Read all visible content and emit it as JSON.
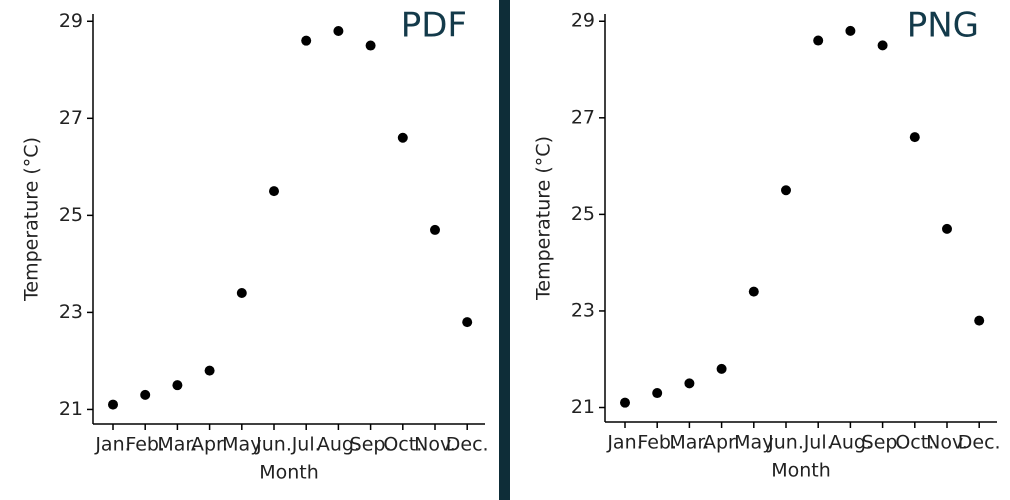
{
  "chart_data": [
    {
      "type": "scatter",
      "annotation": "PDF",
      "x_label": "Month",
      "y_label": "Temperature (°C)",
      "categories": [
        "Jan.",
        "Feb.",
        "Mar.",
        "Apr.",
        "May",
        "Jun.",
        "Jul.",
        "Aug.",
        "Sep.",
        "Oct.",
        "Nov.",
        "Dec."
      ],
      "values": [
        21.1,
        21.3,
        21.5,
        21.8,
        23.4,
        25.5,
        28.6,
        28.8,
        28.5,
        26.6,
        24.7,
        22.8
      ],
      "color": "#000000",
      "ylim": [
        20.7,
        29.15
      ],
      "yticks": [
        21,
        23,
        25,
        27,
        29
      ]
    },
    {
      "type": "scatter",
      "annotation": "PNG",
      "x_label": "Month",
      "y_label": "Temperature (°C)",
      "categories": [
        "Jan.",
        "Feb.",
        "Mar.",
        "Apr.",
        "May",
        "Jun.",
        "Jul.",
        "Aug.",
        "Sep.",
        "Oct.",
        "Nov.",
        "Dec."
      ],
      "values": [
        21.1,
        21.3,
        21.5,
        21.8,
        23.4,
        25.5,
        28.6,
        28.8,
        28.5,
        26.6,
        24.7,
        22.8
      ],
      "color": "#000000",
      "ylim": [
        20.7,
        29.15
      ],
      "yticks": [
        21,
        23,
        25,
        27,
        29
      ]
    }
  ]
}
